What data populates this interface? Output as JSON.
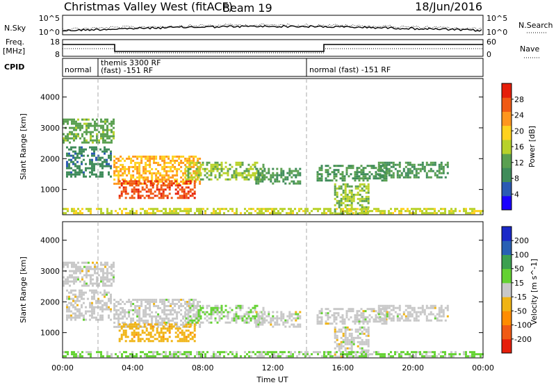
{
  "header": {
    "station": "Christmas Valley West (fitACF)",
    "beam": "Beam 19",
    "date": "18/Jun/2016"
  },
  "nsky_panel": {
    "left_label": "N.Sky",
    "left_ticks": [
      "10^5",
      "10^0"
    ],
    "right_label": "N.Search",
    "right_ticks": [
      "10^5",
      "10^0"
    ]
  },
  "freq_panel": {
    "left_label_line1": "Freq.",
    "left_label_line2": "[MHz]",
    "left_ticks": [
      "18",
      "8"
    ],
    "right_label": "Nave",
    "right_ticks": [
      "60",
      "0"
    ]
  },
  "cpid_panel": {
    "label": "CPID",
    "segments": [
      "normal",
      "themis 3300 RF",
      "(fast) -151 RF",
      "normal (fast) -151 RF"
    ]
  },
  "colors": {
    "power": [
      "#1a00ff",
      "#2b5ab4",
      "#3f8c5a",
      "#5aa050",
      "#b8d22a",
      "#ffd21e",
      "#ff961e",
      "#f05a14",
      "#e61e0a"
    ],
    "velocity": [
      "#e61e0a",
      "#f05a14",
      "#ff8c00",
      "#f0b414",
      "#c8c8c8",
      "#64d232",
      "#3ca050",
      "#2860b4",
      "#1a28c8"
    ]
  },
  "chart_data": [
    {
      "type": "heatmap",
      "quantity": "power",
      "xlabel": "",
      "ylabel": "Slant Range [km]",
      "yticks": [
        1000,
        2000,
        3000,
        4000
      ],
      "xlim": [
        0,
        24
      ],
      "ylim": [
        180,
        4600
      ],
      "colorbar": {
        "label": "Power [dB]",
        "ticks": [
          "4",
          "8",
          "12",
          "16",
          "20",
          "24",
          "28"
        ],
        "range": [
          0,
          30
        ]
      },
      "regions": [
        {
          "x": [
            0.0,
            2.9
          ],
          "y": [
            2500,
            3300
          ],
          "value": 12
        },
        {
          "x": [
            0.2,
            2.8
          ],
          "y": [
            1400,
            2400
          ],
          "value": 8
        },
        {
          "x": [
            2.9,
            7.8
          ],
          "y": [
            1200,
            2100
          ],
          "value": 20
        },
        {
          "x": [
            3.2,
            7.5
          ],
          "y": [
            700,
            1300
          ],
          "value": 26
        },
        {
          "x": [
            7.0,
            11.5
          ],
          "y": [
            1300,
            1900
          ],
          "value": 14
        },
        {
          "x": [
            11.0,
            13.5
          ],
          "y": [
            1200,
            1700
          ],
          "value": 10
        },
        {
          "x": [
            14.5,
            18.5
          ],
          "y": [
            1300,
            1800
          ],
          "value": 10
        },
        {
          "x": [
            18.0,
            22.0
          ],
          "y": [
            1400,
            1900
          ],
          "value": 10
        },
        {
          "x": [
            15.5,
            17.5
          ],
          "y": [
            200,
            1200
          ],
          "value": 14
        },
        {
          "x": [
            0.0,
            24.0
          ],
          "y": [
            200,
            400
          ],
          "value": 16
        }
      ]
    },
    {
      "type": "heatmap",
      "quantity": "velocity",
      "xlabel": "Time UT",
      "ylabel": "Slant Range [km]",
      "xticks": [
        "00:00",
        "04:00",
        "08:00",
        "12:00",
        "16:00",
        "20:00",
        "00:00"
      ],
      "yticks": [
        1000,
        2000,
        3000,
        4000
      ],
      "xlim": [
        0,
        24
      ],
      "ylim": [
        180,
        4600
      ],
      "colorbar": {
        "label": "Velocity [m s^-1]",
        "ticks": [
          "-200",
          "-100",
          "-50",
          "-15",
          "15",
          "50",
          "100",
          "200"
        ],
        "range": [
          -250,
          250
        ]
      },
      "regions": [
        {
          "x": [
            0.0,
            2.9
          ],
          "y": [
            2500,
            3300
          ],
          "value": 0
        },
        {
          "x": [
            0.2,
            2.8
          ],
          "y": [
            1400,
            2400
          ],
          "value": 0
        },
        {
          "x": [
            2.9,
            7.8
          ],
          "y": [
            1200,
            2100
          ],
          "value": 0
        },
        {
          "x": [
            3.2,
            7.5
          ],
          "y": [
            700,
            1300
          ],
          "value": -60
        },
        {
          "x": [
            7.0,
            11.5
          ],
          "y": [
            1300,
            1900
          ],
          "value": 30
        },
        {
          "x": [
            11.0,
            13.5
          ],
          "y": [
            1200,
            1700
          ],
          "value": 0
        },
        {
          "x": [
            14.5,
            18.5
          ],
          "y": [
            1300,
            1800
          ],
          "value": 0
        },
        {
          "x": [
            18.0,
            22.0
          ],
          "y": [
            1400,
            1900
          ],
          "value": 0
        },
        {
          "x": [
            15.5,
            17.5
          ],
          "y": [
            200,
            1200
          ],
          "value": 0
        },
        {
          "x": [
            0.0,
            24.0
          ],
          "y": [
            200,
            400
          ],
          "value": 40
        }
      ]
    }
  ]
}
